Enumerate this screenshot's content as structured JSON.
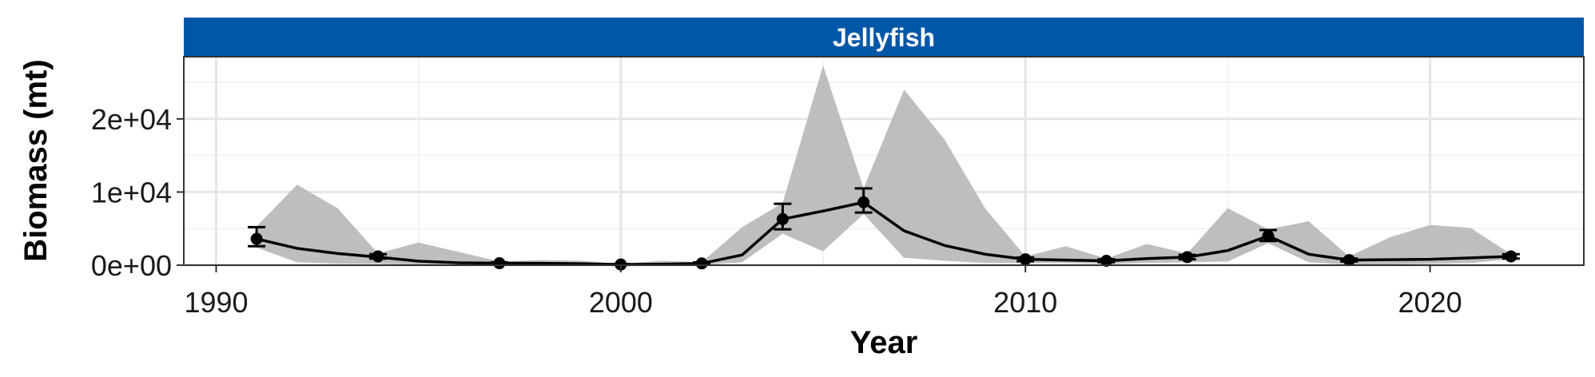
{
  "chart_data": {
    "type": "line",
    "title": "Jellyfish",
    "xlabel": "Year",
    "ylabel": "Biomass (mt)",
    "xlim": [
      1989.2,
      2023.8
    ],
    "ylim": [
      0,
      28500
    ],
    "x_ticks": [
      1990,
      2000,
      2010,
      2020
    ],
    "y_ticks": [
      0,
      10000,
      20000
    ],
    "y_tick_labels": [
      "0e+00",
      "1e+04",
      "2e+04"
    ],
    "grid": true,
    "legend": "none",
    "colors": {
      "strip": "#0057A8",
      "ribbon": "#BEBEBE",
      "line": "#000000",
      "grid_major": "#E5E5E5",
      "grid_minor": "#F2F2F2"
    },
    "series": [
      {
        "x": [
          1991,
          1992,
          1993,
          1994,
          1995,
          1996,
          1997,
          1998,
          1999,
          2000,
          2001,
          2002,
          2003,
          2004,
          2005,
          2006,
          2007,
          2008,
          2009,
          2010,
          2011,
          2012,
          2013,
          2014,
          2015,
          2016,
          2017,
          2018,
          2019,
          2020,
          2021,
          2022
        ],
        "y": [
          3600,
          2300,
          1600,
          1100,
          550,
          330,
          270,
          260,
          200,
          90,
          130,
          240,
          1400,
          6300,
          7400,
          8600,
          4700,
          2700,
          1500,
          800,
          700,
          600,
          900,
          1100,
          2000,
          4000,
          1500,
          700,
          750,
          800,
          1000,
          1200
        ],
        "lower": [
          2400,
          400,
          200,
          200,
          100,
          50,
          50,
          50,
          30,
          20,
          20,
          50,
          400,
          4300,
          1900,
          7000,
          1000,
          600,
          300,
          300,
          300,
          200,
          300,
          400,
          500,
          3000,
          400,
          100,
          100,
          200,
          300,
          800
        ],
        "upper": [
          5300,
          11000,
          7800,
          1600,
          3100,
          1800,
          500,
          700,
          600,
          200,
          600,
          400,
          5200,
          8500,
          27300,
          10500,
          24000,
          17200,
          7800,
          1200,
          2600,
          900,
          2900,
          1600,
          7800,
          4900,
          6000,
          1200,
          3800,
          5500,
          5100,
          1500
        ]
      }
    ],
    "survey_points": [
      {
        "x": 1991,
        "y": 3600,
        "err_low": 2600,
        "err_high": 5200
      },
      {
        "x": 1994,
        "y": 1200,
        "err_low": 900,
        "err_high": 1500
      },
      {
        "x": 1997,
        "y": 270,
        "err_low": 150,
        "err_high": 400
      },
      {
        "x": 2000,
        "y": 90,
        "err_low": 40,
        "err_high": 150
      },
      {
        "x": 2002,
        "y": 240,
        "err_low": 120,
        "err_high": 380
      },
      {
        "x": 2004,
        "y": 6300,
        "err_low": 4900,
        "err_high": 8400
      },
      {
        "x": 2006,
        "y": 8600,
        "err_low": 7200,
        "err_high": 10500
      },
      {
        "x": 2010,
        "y": 800,
        "err_low": 550,
        "err_high": 1050
      },
      {
        "x": 2012,
        "y": 600,
        "err_low": 400,
        "err_high": 800
      },
      {
        "x": 2014,
        "y": 1100,
        "err_low": 800,
        "err_high": 1400
      },
      {
        "x": 2016,
        "y": 4000,
        "err_low": 3300,
        "err_high": 4800
      },
      {
        "x": 2018,
        "y": 700,
        "err_low": 500,
        "err_high": 900
      },
      {
        "x": 2022,
        "y": 1200,
        "err_low": 900,
        "err_high": 1500
      }
    ]
  }
}
